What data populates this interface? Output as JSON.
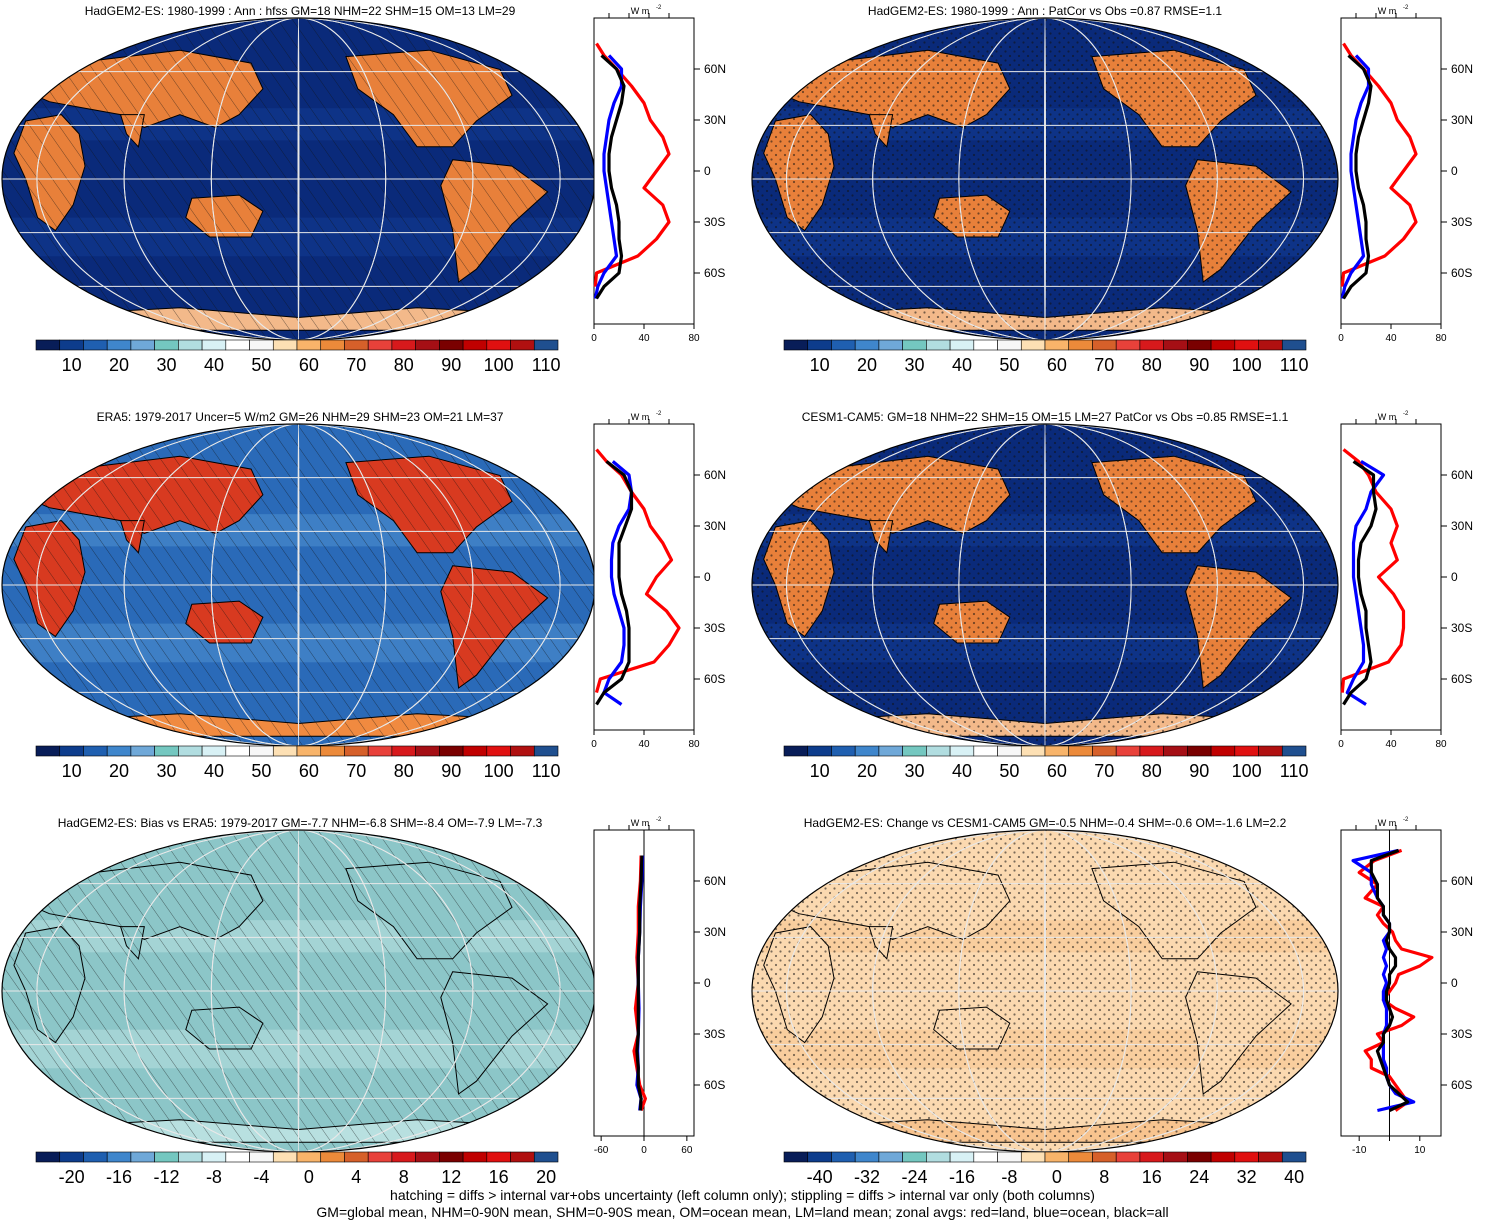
{
  "panels": [
    {
      "title": "HadGEM2-ES: 1980-1999 : Ann : hfss GM=18 NHM=22 SHM=15 OM=13 LM=29",
      "pattern": "hatch",
      "land_style": "warm",
      "ocean_style": "deep",
      "cbar": "main",
      "profile": "p1"
    },
    {
      "title": "HadGEM2-ES: 1980-1999 : Ann : PatCor vs Obs =0.87 RMSE=1.1",
      "pattern": "stipple",
      "land_style": "warm",
      "ocean_style": "deep",
      "cbar": "main",
      "profile": "p1"
    },
    {
      "title": "ERA5: 1979-2017 Uncer=5 W/m2 GM=26 NHM=29 SHM=23 OM=21 LM=37",
      "pattern": "hatch",
      "land_style": "hot",
      "ocean_style": "mid",
      "cbar": "main",
      "profile": "p3"
    },
    {
      "title": "CESM1-CAM5: GM=18 NHM=22 SHM=15 OM=15 LM=27 PatCor vs Obs =0.85 RMSE=1.1",
      "pattern": "stipple",
      "land_style": "warm",
      "ocean_style": "deep",
      "cbar": "main",
      "profile": "p4"
    },
    {
      "title": "HadGEM2-ES: Bias vs ERA5: 1979-2017 GM=-7.7 NHM=-6.8 SHM=-8.4 OM=-7.9 LM=-7.3",
      "pattern": "hatch",
      "land_style": "bias",
      "ocean_style": "bias",
      "cbar": "bias",
      "profile": "p5"
    },
    {
      "title": "HadGEM2-ES: Change vs CESM1-CAM5 GM=-0.5 NHM=-0.4 SHM=-0.6 OM=-1.6 LM=2.2",
      "pattern": "stipple",
      "land_style": "change",
      "ocean_style": "change",
      "cbar": "change",
      "profile": "p6"
    }
  ],
  "colorbars": {
    "main": {
      "colors": [
        "#081d58",
        "#0d3c8c",
        "#1f5fb0",
        "#3f86cc",
        "#6fa8d8",
        "#74c7c0",
        "#b1dde0",
        "#d8f1f5",
        "#ffffff",
        "#f7f7f7",
        "#fde0b4",
        "#f8b46a",
        "#ec8a3a",
        "#d6602a",
        "#e8413a",
        "#d7191c",
        "#a50f15",
        "#7a0000",
        "#c00000",
        "#e01010",
        "#b01010",
        "#1f4f8f"
      ],
      "labels": [
        "10",
        "20",
        "30",
        "40",
        "50",
        "60",
        "70",
        "80",
        "90",
        "100",
        "110"
      ]
    },
    "bias": {
      "colors": [
        "#081d58",
        "#0d3c8c",
        "#1f5fb0",
        "#3f86cc",
        "#6fa8d8",
        "#74c7c0",
        "#b1dde0",
        "#d8f1f5",
        "#ffffff",
        "#f7f7f7",
        "#fde0b4",
        "#f8b46a",
        "#ec8a3a",
        "#d6602a",
        "#e8413a",
        "#d7191c",
        "#a50f15",
        "#7a0000",
        "#c00000",
        "#e01010",
        "#b01010",
        "#1f4f8f"
      ],
      "labels": [
        "-20",
        "-16",
        "-12",
        "-8",
        "-4",
        "0",
        "4",
        "8",
        "12",
        "16",
        "20"
      ]
    },
    "change": {
      "colors": [
        "#081d58",
        "#0d3c8c",
        "#1f5fb0",
        "#3f86cc",
        "#6fa8d8",
        "#74c7c0",
        "#b1dde0",
        "#d8f1f5",
        "#ffffff",
        "#f7f7f7",
        "#fde0b4",
        "#f8b46a",
        "#ec8a3a",
        "#d6602a",
        "#e8413a",
        "#d7191c",
        "#a50f15",
        "#7a0000",
        "#c00000",
        "#e01010",
        "#b01010",
        "#1f4f8f"
      ],
      "labels": [
        "-40",
        "-32",
        "-24",
        "-16",
        "-8",
        "0",
        "8",
        "16",
        "24",
        "32",
        "40"
      ]
    }
  },
  "map_colors": {
    "deep": [
      "#0a2a7a",
      "#123a92"
    ],
    "mid": [
      "#2a6ab8",
      "#4f8fd0"
    ],
    "warm": [
      "#e8803a",
      "#f3b98a"
    ],
    "hot": [
      "#d83a20",
      "#f08a40"
    ],
    "bias": [
      "#8cc6c8",
      "#b8e0e0"
    ],
    "change": [
      "#fbd9b0",
      "#f8c48f"
    ]
  },
  "chart_data": {
    "type": "line",
    "unit_label": "W m",
    "unit_sup": "-2",
    "lat_labels": [
      "60N",
      "30N",
      "0",
      "30S",
      "60S"
    ],
    "lat_ticks": [
      60,
      30,
      0,
      -30,
      -60
    ],
    "profiles": {
      "p1": {
        "xlim": [
          0,
          80
        ],
        "xticks": [
          0,
          40,
          80
        ],
        "xticklabels": [
          "0",
          "40",
          "80"
        ],
        "zero": 0,
        "lat": [
          75,
          68,
          60,
          50,
          40,
          30,
          20,
          10,
          0,
          -10,
          -20,
          -30,
          -40,
          -50,
          -60,
          -68,
          -75
        ],
        "land": [
          2,
          8,
          18,
          30,
          40,
          45,
          55,
          60,
          50,
          40,
          55,
          60,
          50,
          35,
          2,
          1,
          null
        ],
        "ocean": [
          null,
          12,
          22,
          22,
          16,
          12,
          10,
          8,
          8,
          10,
          12,
          14,
          16,
          18,
          8,
          3,
          1
        ],
        "all": [
          null,
          6,
          18,
          24,
          22,
          18,
          14,
          12,
          12,
          14,
          18,
          20,
          20,
          22,
          20,
          8,
          2
        ]
      },
      "p3": {
        "xlim": [
          0,
          80
        ],
        "xticks": [
          0,
          40,
          80
        ],
        "xticklabels": [
          "0",
          "40",
          "80"
        ],
        "zero": 0,
        "lat": [
          75,
          68,
          60,
          50,
          40,
          30,
          20,
          10,
          0,
          -10,
          -20,
          -30,
          -40,
          -50,
          -60,
          -68,
          -75
        ],
        "land": [
          2,
          10,
          22,
          30,
          40,
          45,
          55,
          62,
          50,
          42,
          58,
          68,
          60,
          48,
          5,
          2,
          null
        ],
        "ocean": [
          null,
          15,
          28,
          30,
          28,
          20,
          15,
          14,
          14,
          16,
          20,
          24,
          24,
          22,
          12,
          8,
          22
        ],
        "all": [
          null,
          10,
          24,
          30,
          30,
          25,
          20,
          20,
          20,
          22,
          26,
          28,
          28,
          28,
          22,
          8,
          2
        ]
      },
      "p4": {
        "xlim": [
          0,
          80
        ],
        "xticks": [
          0,
          40,
          80
        ],
        "xticklabels": [
          "0",
          "40",
          "80"
        ],
        "zero": 0,
        "lat": [
          75,
          68,
          60,
          50,
          40,
          30,
          20,
          10,
          0,
          -10,
          -20,
          -30,
          -40,
          -50,
          -60,
          -68,
          -75
        ],
        "land": [
          2,
          14,
          22,
          28,
          40,
          45,
          40,
          45,
          30,
          42,
          50,
          50,
          48,
          38,
          2,
          1,
          null
        ],
        "ocean": [
          null,
          16,
          34,
          24,
          20,
          12,
          10,
          10,
          10,
          12,
          14,
          16,
          18,
          18,
          10,
          5,
          20
        ],
        "all": [
          null,
          10,
          26,
          26,
          28,
          24,
          16,
          14,
          14,
          16,
          20,
          20,
          22,
          24,
          20,
          8,
          2
        ]
      },
      "p5": {
        "xlim": [
          -70,
          70
        ],
        "xticks": [
          -60,
          0,
          60
        ],
        "xticklabels": [
          "-60",
          "0",
          "60"
        ],
        "zero": 0,
        "lat": [
          75,
          60,
          45,
          30,
          15,
          0,
          -15,
          -30,
          -40,
          -50,
          -60,
          -68,
          -75
        ],
        "land": [
          -4,
          -5,
          -8,
          -8,
          -10,
          -8,
          -12,
          -8,
          -14,
          -10,
          -6,
          2,
          -4
        ],
        "ocean": [
          -2,
          -3,
          -5,
          -6,
          -8,
          -8,
          -7,
          -8,
          -9,
          -8,
          -10,
          -4,
          -6
        ],
        "all": [
          -3,
          -4,
          -6,
          -6,
          -8,
          -8,
          -8,
          -8,
          -10,
          -8,
          -8,
          -4,
          -5
        ]
      },
      "p6": {
        "xlim": [
          -16,
          17
        ],
        "xticks": [
          -10,
          0,
          10
        ],
        "xticklabels": [
          "-10",
          "",
          "10"
        ],
        "zero": 0,
        "lat": [
          78,
          72,
          65,
          58,
          50,
          45,
          40,
          35,
          30,
          25,
          20,
          15,
          10,
          5,
          0,
          -5,
          -10,
          -15,
          -20,
          -25,
          -30,
          -35,
          -40,
          -45,
          -50,
          -55,
          -60,
          -65,
          -70,
          -75
        ],
        "land": [
          4,
          -5,
          -10,
          -4,
          -8,
          -2,
          -4,
          -2,
          1,
          2,
          4,
          14,
          10,
          3,
          2,
          0,
          -2,
          2,
          8,
          4,
          -4,
          -2,
          -8,
          -6,
          -6,
          0,
          2,
          4,
          6,
          2
        ],
        "ocean": [
          3,
          -12,
          -6,
          -6,
          -4,
          -2,
          -2,
          0,
          0,
          -2,
          -1,
          -2,
          -1,
          -2,
          -1,
          -2,
          -2,
          -1,
          -1,
          -1,
          -2,
          -2,
          -2,
          -2,
          -1,
          -1,
          0,
          2,
          8,
          -4
        ],
        "all": [
          3,
          -6,
          -6,
          -4,
          -4,
          -2,
          -2,
          0,
          0,
          -1,
          0,
          2,
          2,
          0,
          0,
          -1,
          -1,
          0,
          1,
          0,
          -2,
          -2,
          -4,
          -3,
          -2,
          -1,
          0,
          3,
          6,
          0
        ]
      }
    }
  },
  "footer": {
    "line1": "hatching = diffs > internal var+obs uncertainty (left column only); stippling = diffs > internal var only (both columns)",
    "line2": "GM=global mean, NHM=0-90N mean, SHM=0-90S mean, OM=ocean mean, LM=land mean; zonal avgs: red=land, blue=ocean, black=all"
  }
}
